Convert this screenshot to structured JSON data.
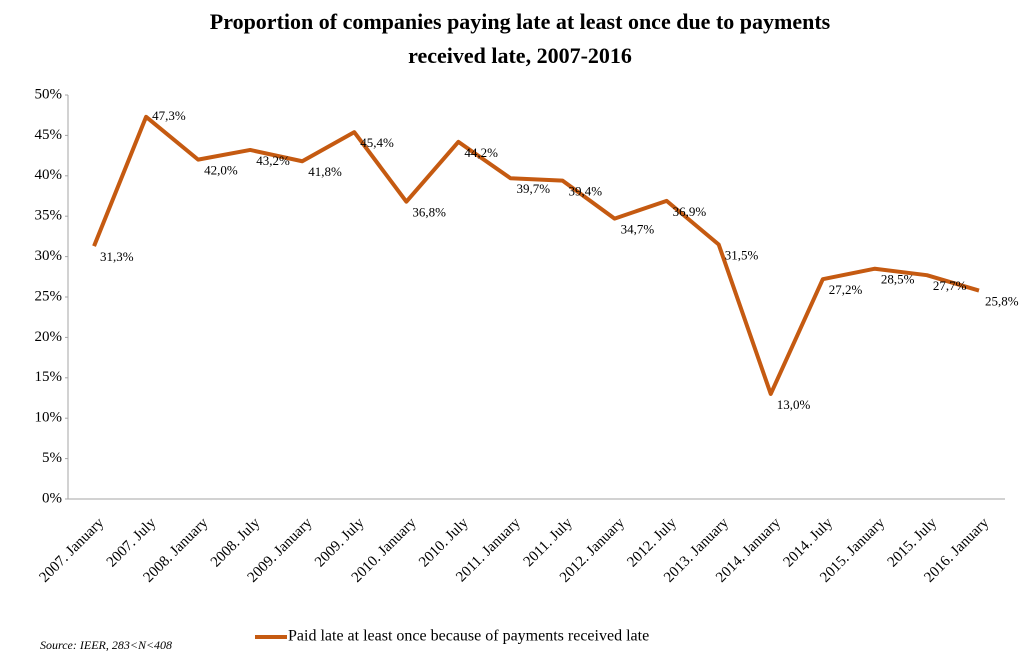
{
  "chart_data": {
    "type": "line",
    "title": [
      "Proportion of companies paying late at least once due to payments",
      "received late, 2007-2016"
    ],
    "source": "Source: IEER, 283<N<408",
    "categories": [
      "2007. January",
      "2007. July",
      "2008. January",
      "2008. July",
      "2009. January",
      "2009. July",
      "2010. January",
      "2010. July",
      "2011. January",
      "2011. July",
      "2012. January",
      "2012. July",
      "2013. January",
      "2014. January",
      "2014. July",
      "2015. January",
      "2015. July",
      "2016. January"
    ],
    "series": [
      {
        "name": "Paid late at least once because of payments received late",
        "color": "#c55a11",
        "values": [
          31.3,
          47.3,
          42.0,
          43.2,
          41.8,
          45.4,
          36.8,
          44.2,
          39.7,
          39.4,
          34.7,
          36.9,
          31.5,
          13.0,
          27.2,
          28.5,
          27.7,
          25.8
        ],
        "value_labels": [
          "31,3%",
          "47,3%",
          "42,0%",
          "43,2%",
          "41,8%",
          "45,4%",
          "36,8%",
          "44,2%",
          "39,7%",
          "39,4%",
          "34,7%",
          "36,9%",
          "31,5%",
          "13,0%",
          "27,2%",
          "28,5%",
          "27,7%",
          "25,8%"
        ]
      }
    ],
    "ylim": [
      0,
      50
    ],
    "yticks": [
      {
        "value": 0,
        "label": "0%"
      },
      {
        "value": 5,
        "label": "5%"
      },
      {
        "value": 10,
        "label": "10%"
      },
      {
        "value": 15,
        "label": "15%"
      },
      {
        "value": 20,
        "label": "20%"
      },
      {
        "value": 25,
        "label": "25%"
      },
      {
        "value": 30,
        "label": "30%"
      },
      {
        "value": 35,
        "label": "35%"
      },
      {
        "value": 40,
        "label": "40%"
      },
      {
        "value": 45,
        "label": "45%"
      },
      {
        "value": 50,
        "label": "50%"
      }
    ],
    "legend": "bottom",
    "grid": false
  }
}
